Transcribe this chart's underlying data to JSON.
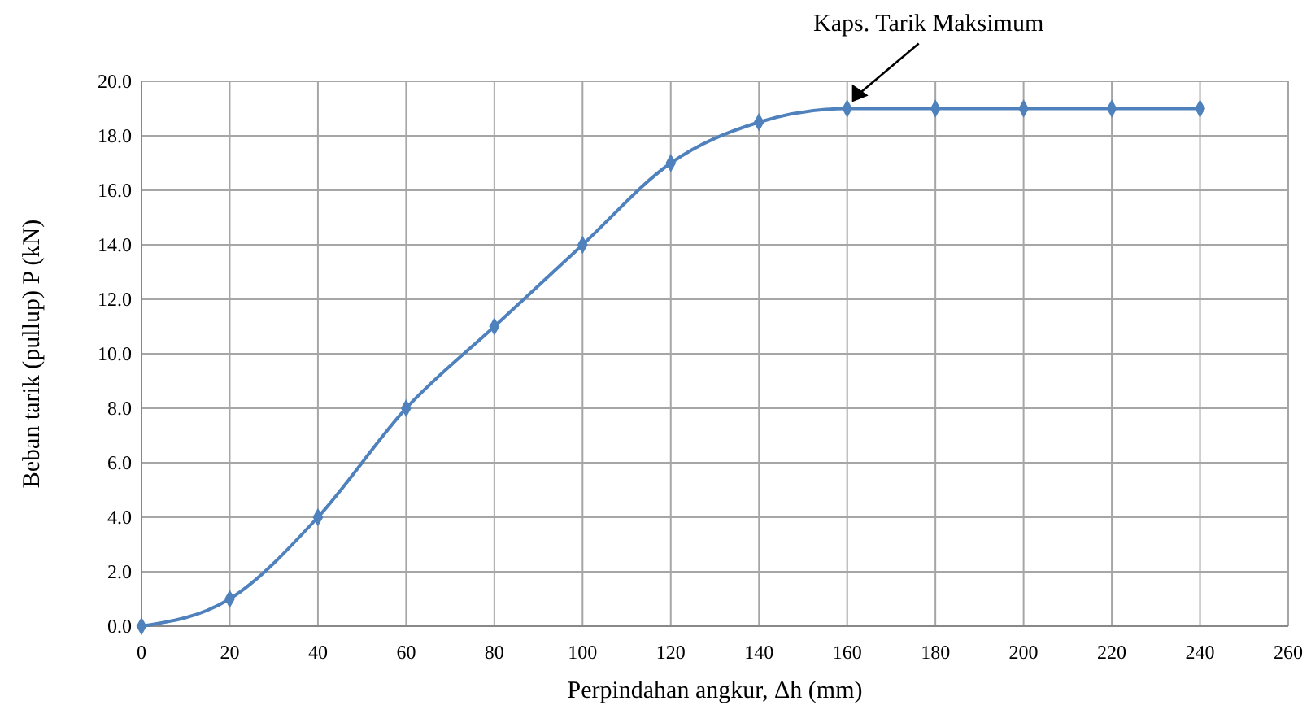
{
  "chart_data": {
    "type": "line",
    "xlabel": "Perpindahan angkur, Δh (mm)",
    "ylabel": "Beban tarik (pullup) P (kN)",
    "x": [
      0,
      20,
      40,
      60,
      80,
      100,
      120,
      140,
      160,
      180,
      200,
      220,
      240
    ],
    "series": [
      {
        "color": "#4f81bd",
        "values": [
          0,
          1,
          4,
          8,
          11,
          14,
          17,
          18.5,
          19,
          19,
          19,
          19,
          19
        ]
      }
    ],
    "xlim": [
      0,
      260
    ],
    "xticks": [
      0,
      20,
      40,
      60,
      80,
      100,
      120,
      140,
      160,
      180,
      200,
      220,
      240,
      260
    ],
    "ylim": [
      0,
      20
    ],
    "yticks": [
      {
        "value": 0,
        "label": "0.0"
      },
      {
        "value": 2,
        "label": "2.0"
      },
      {
        "value": 4,
        "label": "4.0"
      },
      {
        "value": 6,
        "label": "6.0"
      },
      {
        "value": 8,
        "label": "8.0"
      },
      {
        "value": 10,
        "label": "10.0"
      },
      {
        "value": 12,
        "label": "12.0"
      },
      {
        "value": 14,
        "label": "14.0"
      },
      {
        "value": 16,
        "label": "16.0"
      },
      {
        "value": 18,
        "label": "18.0"
      },
      {
        "value": 20,
        "label": "20.0"
      }
    ],
    "grid": true,
    "marker": "diamond",
    "line_style": "solid",
    "annotations": [
      {
        "text": "Kaps. Tarik Maksimum",
        "x": 160,
        "y": 19
      }
    ]
  }
}
